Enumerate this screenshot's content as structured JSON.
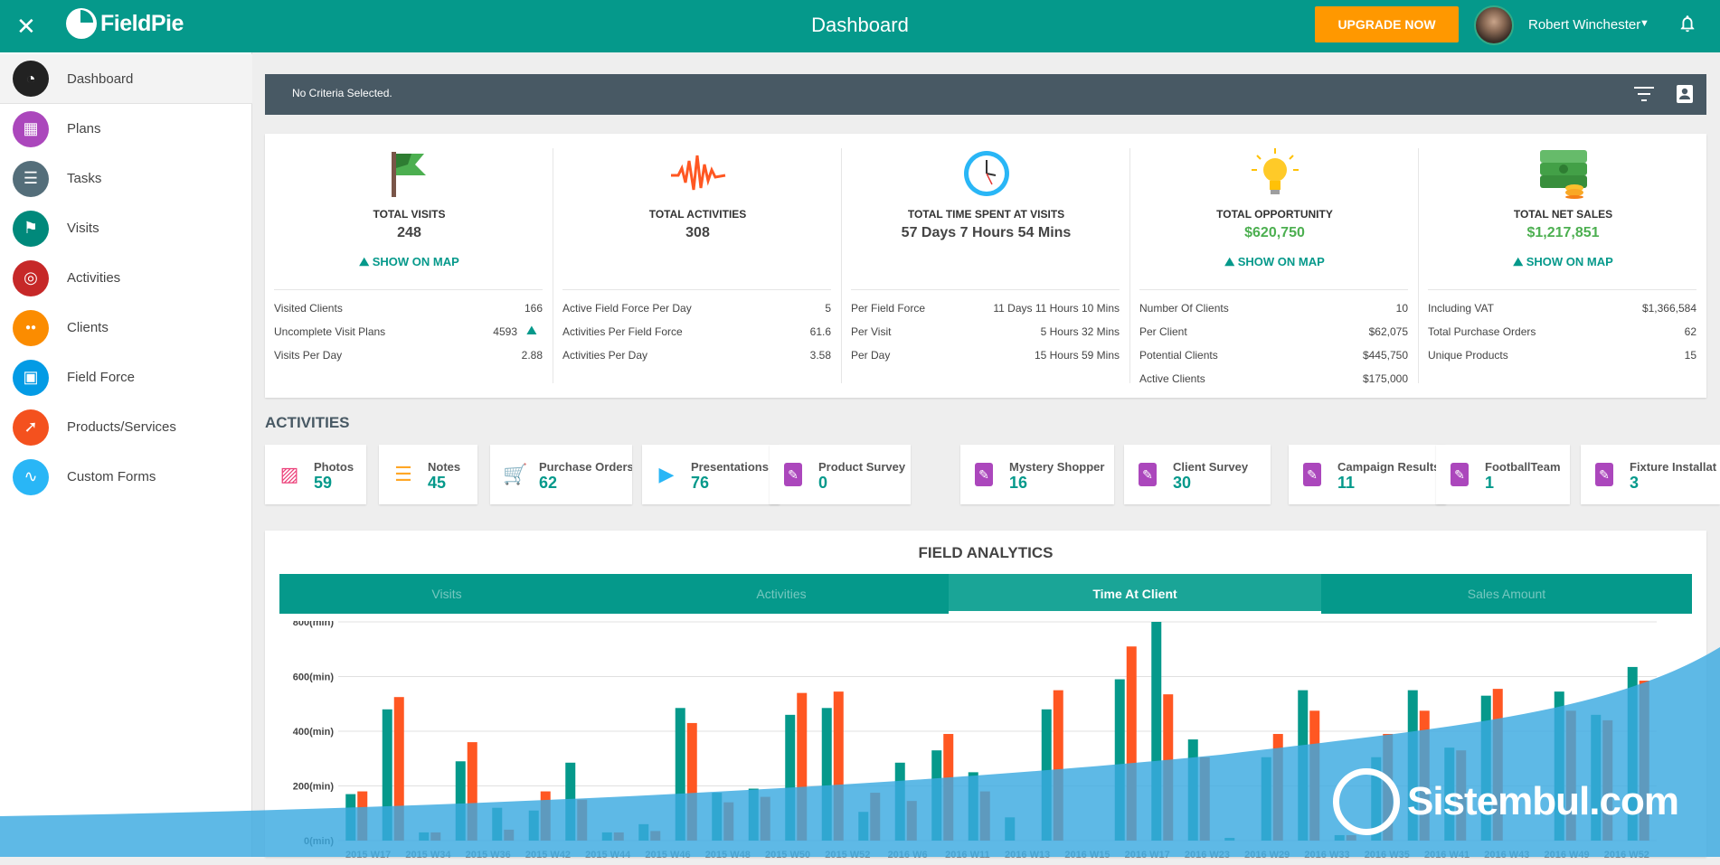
{
  "topbar": {
    "brand": "FieldPie",
    "title": "Dashboard",
    "upgrade_label": "UPGRADE NOW",
    "user_name": "Robert Winchester"
  },
  "sidebar": {
    "items": [
      {
        "label": "Dashboard",
        "color": "#222222",
        "icon": "speedometer-icon"
      },
      {
        "label": "Plans",
        "color": "#ab47bc",
        "icon": "calendar-icon"
      },
      {
        "label": "Tasks",
        "color": "#546e7a",
        "icon": "task-list-icon"
      },
      {
        "label": "Visits",
        "color": "#00897b",
        "icon": "flag-icon"
      },
      {
        "label": "Activities",
        "color": "#c62828",
        "icon": "target-icon"
      },
      {
        "label": "Clients",
        "color": "#fb8c00",
        "icon": "group-icon"
      },
      {
        "label": "Field Force",
        "color": "#039be5",
        "icon": "contact-card-icon"
      },
      {
        "label": "Products/Services",
        "color": "#f4511e",
        "icon": "rocket-icon"
      },
      {
        "label": "Custom Forms",
        "color": "#29b6f6",
        "icon": "waveform-icon"
      }
    ]
  },
  "criteria": {
    "text": "No Criteria Selected."
  },
  "stats": [
    {
      "title": "TOTAL VISITS",
      "value": "248",
      "value_green": false,
      "show_map": "SHOW ON MAP",
      "icon": "green-flag-icon",
      "rows": [
        {
          "label": "Visited Clients",
          "value": "166"
        },
        {
          "label": "Uncomplete Visit Plans",
          "value": "4593"
        },
        {
          "label": "Visits Per Day",
          "value": "2.88"
        }
      ]
    },
    {
      "title": "TOTAL ACTIVITIES",
      "value": "308",
      "value_green": false,
      "show_map": "",
      "icon": "pulse-wave-icon",
      "rows": [
        {
          "label": "Active Field Force Per Day",
          "value": "5"
        },
        {
          "label": "Activities Per Field Force",
          "value": "61.6"
        },
        {
          "label": "Activities Per Day",
          "value": "3.58"
        }
      ]
    },
    {
      "title": "TOTAL TIME SPENT AT VISITS",
      "value": "57 Days 7 Hours 54 Mins",
      "value_green": false,
      "show_map": "",
      "icon": "clock-icon",
      "rows": [
        {
          "label": "Per Field Force",
          "value": "11 Days 11 Hours 10 Mins"
        },
        {
          "label": "Per Visit",
          "value": "5 Hours 32 Mins"
        },
        {
          "label": "Per Day",
          "value": "15 Hours 59 Mins"
        }
      ]
    },
    {
      "title": "TOTAL OPPORTUNITY",
      "value": "$620,750",
      "value_green": true,
      "show_map": "SHOW ON MAP",
      "icon": "light-bulb-icon",
      "rows": [
        {
          "label": "Number Of Clients",
          "value": "10"
        },
        {
          "label": "Per Client",
          "value": "$62,075"
        },
        {
          "label": "Potential Clients",
          "value": "$445,750"
        },
        {
          "label": "Active Clients",
          "value": "$175,000"
        }
      ]
    },
    {
      "title": "TOTAL NET SALES",
      "value": "$1,217,851",
      "value_green": true,
      "show_map": "SHOW ON MAP",
      "icon": "money-stack-icon",
      "rows": [
        {
          "label": "Including VAT",
          "value": "$1,366,584"
        },
        {
          "label": "Total Purchase Orders",
          "value": "62"
        },
        {
          "label": "Unique Products",
          "value": "15"
        }
      ]
    }
  ],
  "activities_heading": "ACTIVITIES",
  "activities": [
    {
      "name": "Photos",
      "count": "59",
      "icon": "photo-icon",
      "color": "#ec407a"
    },
    {
      "name": "Notes",
      "count": "45",
      "icon": "notes-icon",
      "color": "#ffa726"
    },
    {
      "name": "Purchase Orders",
      "count": "62",
      "icon": "cart-icon",
      "color": "#1565c0"
    },
    {
      "name": "Presentations",
      "count": "76",
      "icon": "play-icon",
      "color": "#29b6f6"
    },
    {
      "name": "Product Survey",
      "count": "0",
      "icon": "clipboard-icon",
      "color": "#ab47bc"
    },
    {
      "name": "Mystery Shopper",
      "count": "16",
      "icon": "clipboard-icon",
      "color": "#ab47bc"
    },
    {
      "name": "Client Survey",
      "count": "30",
      "icon": "clipboard-icon",
      "color": "#ab47bc"
    },
    {
      "name": "Campaign Results",
      "count": "11",
      "icon": "clipboard-icon",
      "color": "#ab47bc"
    },
    {
      "name": "FootballTeam",
      "count": "1",
      "icon": "clipboard-icon",
      "color": "#ab47bc"
    },
    {
      "name": "Fixture Installat",
      "count": "3",
      "icon": "clipboard-icon",
      "color": "#ab47bc"
    }
  ],
  "analytics": {
    "title": "FIELD ANALYTICS",
    "tabs": [
      "Visits",
      "Activities",
      "Time At Client",
      "Sales Amount"
    ],
    "active_tab": 2
  },
  "chart_data": {
    "type": "bar",
    "ylim": [
      0,
      800
    ],
    "yticks": [
      "0(min)",
      "200(min)",
      "400(min)",
      "600(min)",
      "800(min)"
    ],
    "x_tick_labels": [
      "2015 W17",
      "2015 W34",
      "2015 W36",
      "2015 W42",
      "2015 W44",
      "2015 W46",
      "2015 W48",
      "2015 W50",
      "2015 W52",
      "2016 W6",
      "2016 W11",
      "2016 W13",
      "2016 W15",
      "2016 W17",
      "2016 W23",
      "2016 W29",
      "2016 W33",
      "2016 W35",
      "2016 W41",
      "2016 W43",
      "2016 W49",
      "2016 W52"
    ],
    "colors": [
      "#05998b",
      "#ff5722"
    ],
    "series": [
      {
        "values": [
          170,
          480,
          30,
          290,
          120,
          110,
          285,
          30,
          60,
          485,
          175,
          190,
          460,
          485,
          105,
          285,
          330,
          250,
          85,
          480,
          0,
          590,
          800,
          370,
          10,
          305,
          550,
          20,
          305,
          550,
          340,
          530,
          0,
          545,
          460,
          635
        ]
      },
      {
        "values": [
          180,
          525,
          30,
          360,
          40,
          180,
          150,
          30,
          35,
          430,
          140,
          160,
          540,
          545,
          175,
          145,
          390,
          180,
          0,
          550,
          0,
          710,
          535,
          305,
          0,
          390,
          475,
          20,
          390,
          475,
          330,
          555,
          0,
          475,
          440,
          585
        ]
      }
    ]
  },
  "watermark": "Sistembul.com"
}
